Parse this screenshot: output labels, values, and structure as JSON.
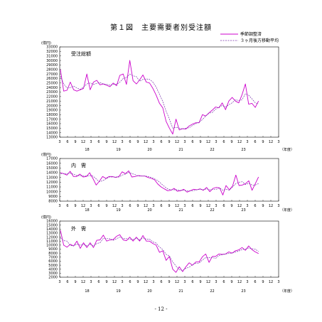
{
  "page": {
    "title": "第１図　主要需要者別受注額",
    "page_number": "- 12 -"
  },
  "legend": {
    "seasonal_label": "季節調整済",
    "moving_avg_label": "３ヶ月後方移動平均"
  },
  "colors": {
    "seasonal": "#cc00cc",
    "moving_avg": "#7733aa",
    "axis": "#000000"
  },
  "x_ticks": [
    "3",
    "6",
    "9",
    "12",
    "3",
    "6",
    "9",
    "12",
    "3",
    "6",
    "9",
    "12",
    "3",
    "6",
    "9",
    "12",
    "3",
    "6",
    "9",
    "12",
    "3",
    "6",
    "9",
    "12",
    "3",
    "6",
    "9",
    "12",
    "3"
  ],
  "year_labels": [
    {
      "label": "18",
      "index": 3
    },
    {
      "label": "19",
      "index": 7
    },
    {
      "label": "20",
      "index": 11
    },
    {
      "label": "21",
      "index": 15
    },
    {
      "label": "22",
      "index": 19
    },
    {
      "label": "23",
      "index": 23
    }
  ],
  "year_unit": "（年度）",
  "chart_data": [
    {
      "type": "line",
      "title": "受注総額",
      "ylabel": "(億円)",
      "ylim": [
        13000,
        33000
      ],
      "ytick_step": 1000,
      "x_count": 29,
      "series": [
        {
          "name": "季節調整済",
          "values": [
            28000,
            23200,
            23400,
            25200,
            23500,
            23200,
            23500,
            23800,
            27000,
            23500,
            25200,
            25600,
            24600,
            24800,
            24500,
            24200,
            25000,
            24400,
            26700,
            27000,
            24700,
            30000,
            25500,
            24800,
            25700,
            26800,
            25200,
            25000,
            23800,
            22300,
            20500,
            19500,
            16500,
            15000,
            13700,
            17000,
            14600,
            14900,
            14800,
            15500,
            15900,
            16200,
            16200,
            18000,
            17700,
            18400,
            19000,
            19700,
            19500,
            20600,
            19100,
            21000,
            21800,
            21000,
            20600,
            22400,
            24800,
            20300,
            20500,
            19600,
            21000
          ],
          "x_start": 0
        },
        {
          "name": "３ヶ月後方移動平均",
          "values": [
            26500,
            24800,
            23900,
            24000,
            24300,
            23900,
            23600,
            24100,
            24800,
            25000,
            24700,
            24900,
            25100,
            24800,
            24700,
            24500,
            24700,
            24700,
            25200,
            26000,
            26200,
            27000,
            26600,
            26400,
            25400,
            25800,
            25900,
            25800,
            25200,
            24100,
            22500,
            20900,
            18800,
            17000,
            15000,
            15200,
            15000,
            14800,
            15000,
            15100,
            15600,
            16000,
            16300,
            16900,
            17700,
            18300,
            18500,
            19200,
            19700,
            20000,
            19700,
            20200,
            20600,
            21300,
            21100,
            21300,
            22600,
            22300,
            21500,
            20600,
            20400
          ],
          "x_start": 0
        }
      ]
    },
    {
      "type": "line",
      "title": "内　需",
      "ylabel": "(億円)",
      "ylim": [
        8000,
        17000
      ],
      "ytick_step": 1000,
      "x_count": 29,
      "series": [
        {
          "name": "季節調整済",
          "values": [
            14000,
            13800,
            13500,
            14300,
            13200,
            13200,
            13700,
            13100,
            13200,
            14000,
            12800,
            11400,
            12200,
            13200,
            12800,
            13200,
            13200,
            13000,
            13200,
            14200,
            13800,
            14400,
            13100,
            13200,
            13400,
            13300,
            13300,
            13000,
            12800,
            12500,
            11600,
            11000,
            10600,
            10200,
            10300,
            10700,
            10100,
            10200,
            10500,
            9900,
            10200,
            10500,
            10400,
            10600,
            10300,
            10900,
            10000,
            10700,
            10900,
            10800,
            9300,
            11300,
            10400,
            11200,
            13500,
            11300,
            11400,
            11700,
            12300,
            10300,
            11700,
            13100
          ],
          "x_start": 0
        },
        {
          "name": "３ヶ月後方移動平均",
          "values": [
            13800,
            13800,
            13800,
            13900,
            13700,
            13400,
            13400,
            13300,
            13300,
            13400,
            13300,
            12700,
            12100,
            12300,
            12700,
            13100,
            13100,
            13100,
            13100,
            13500,
            13700,
            14100,
            13800,
            13600,
            13300,
            13300,
            13300,
            13200,
            13000,
            12700,
            12300,
            11700,
            11100,
            10600,
            10400,
            10400,
            10400,
            10300,
            10300,
            10200,
            10200,
            10200,
            10400,
            10500,
            10400,
            10600,
            10400,
            10500,
            10500,
            10800,
            10300,
            10500,
            10300,
            11000,
            11700,
            12000,
            12100,
            11500,
            11800,
            11400,
            11400,
            11700
          ],
          "x_start": 0
        }
      ]
    },
    {
      "type": "line",
      "title": "外　需",
      "ylabel": "(億円)",
      "ylim": [
        2000,
        16000
      ],
      "ytick_step": 1000,
      "x_count": 29,
      "series": [
        {
          "name": "季節調整済",
          "values": [
            13700,
            10000,
            9500,
            10200,
            9800,
            11000,
            9200,
            10600,
            9400,
            10600,
            9400,
            11200,
            11300,
            12500,
            11000,
            11300,
            11400,
            12200,
            12600,
            11300,
            11100,
            12000,
            11000,
            12000,
            11000,
            12400,
            11000,
            11000,
            10400,
            10000,
            8200,
            8600,
            6200,
            7200,
            4000,
            3200,
            4600,
            3400,
            4600,
            5600,
            5000,
            5800,
            5800,
            7100,
            7800,
            5700,
            7200,
            7200,
            7800,
            7700,
            7800,
            8300,
            8000,
            8600,
            8800,
            9400,
            8700,
            9800,
            8900,
            8300,
            7900
          ],
          "x_start": 0
        },
        {
          "name": "３ヶ月後方移動平均",
          "values": [
            11800,
            11100,
            11000,
            9900,
            9800,
            10300,
            10000,
            10200,
            9800,
            10200,
            9800,
            10400,
            10600,
            11700,
            11600,
            11600,
            11200,
            11600,
            12000,
            11700,
            11600,
            11500,
            11400,
            11700,
            11300,
            11800,
            11500,
            11500,
            10800,
            10500,
            9500,
            8900,
            7700,
            7300,
            5800,
            4800,
            3900,
            3700,
            4200,
            4500,
            5100,
            5500,
            5500,
            6300,
            6900,
            6900,
            6900,
            6700,
            7400,
            7600,
            7800,
            7900,
            8000,
            8300,
            8500,
            8900,
            9000,
            9300,
            9100,
            9000,
            8400
          ],
          "x_start": 0
        }
      ]
    }
  ]
}
